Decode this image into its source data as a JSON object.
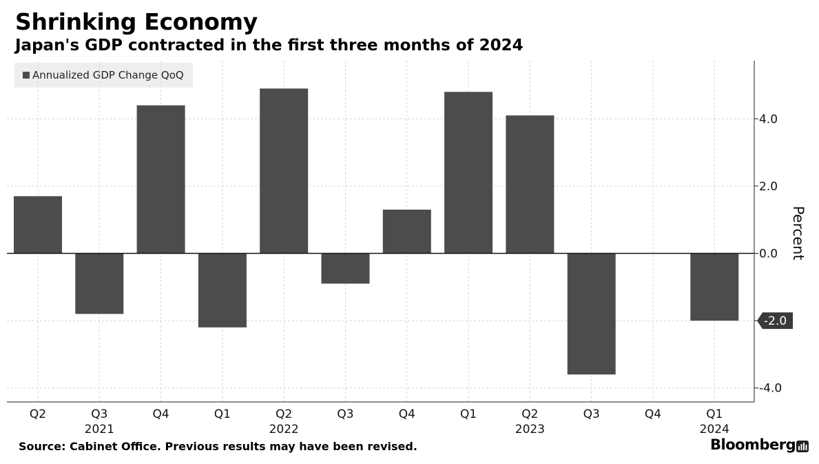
{
  "header": {
    "title": "Shrinking Economy",
    "subtitle": "Japan's GDP contracted in the first three months of 2024"
  },
  "legend": {
    "label": "Annualized GDP Change QoQ",
    "color": "#4c4c4c"
  },
  "footer": {
    "source": "Source: Cabinet Office. Previous results may have been revised.",
    "brand": "Bloomberg"
  },
  "chart_data": {
    "type": "bar",
    "categories": [
      "Q2",
      "Q3",
      "Q4",
      "Q1",
      "Q2",
      "Q3",
      "Q4",
      "Q1",
      "Q2",
      "Q3",
      "Q4",
      "Q1"
    ],
    "year_labels": [
      {
        "label": "2021",
        "category_index": 1
      },
      {
        "label": "2022",
        "category_index": 4
      },
      {
        "label": "2023",
        "category_index": 8
      },
      {
        "label": "2024",
        "category_index": 11
      }
    ],
    "series": [
      {
        "name": "Annualized GDP Change QoQ",
        "values": [
          1.7,
          -1.8,
          4.4,
          -2.2,
          4.9,
          -0.9,
          1.3,
          4.8,
          4.1,
          -3.6,
          0.0,
          -2.0
        ]
      }
    ],
    "ylabel": "Percent",
    "y_ticks": [
      "4.0",
      "2.0",
      "0.0",
      "-2.0",
      "-4.0"
    ],
    "ylim": [
      -4.2,
      5.7
    ],
    "callout": {
      "label": "-2.0",
      "value": -2.0
    },
    "grid": true,
    "y_axis_position": "right",
    "bar_color": "#4c4c4c"
  }
}
